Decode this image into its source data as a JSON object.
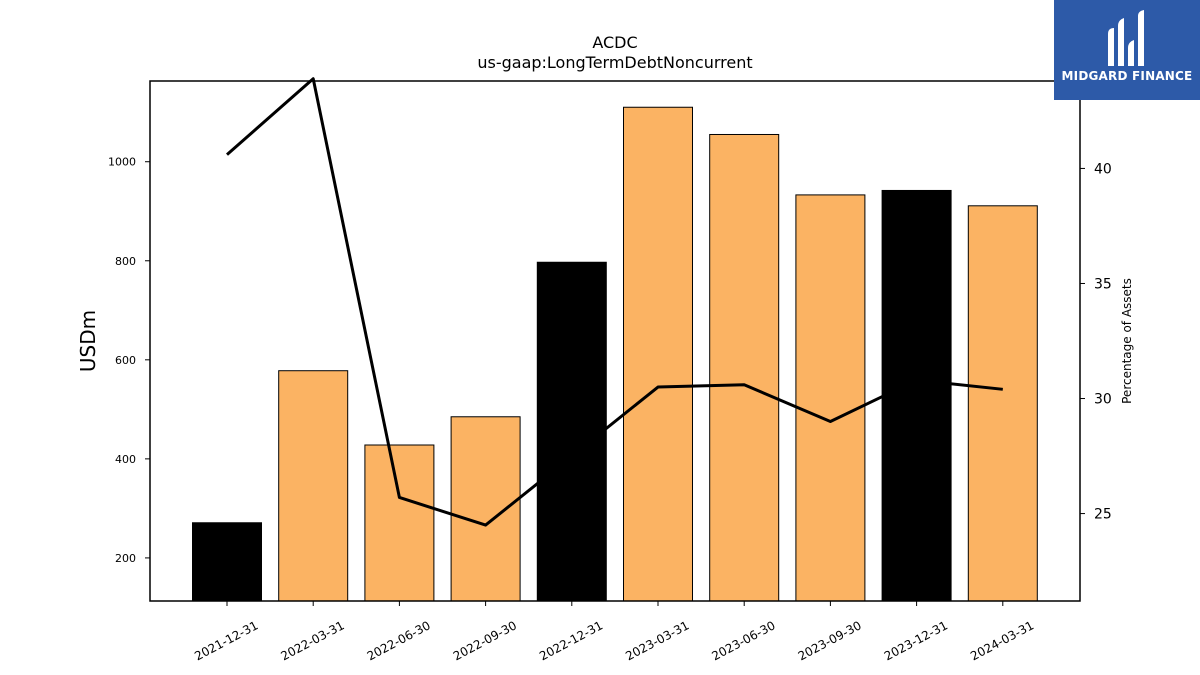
{
  "chart_data": {
    "type": "bar",
    "title": "ACDC",
    "subtitle": "us-gaap:LongTermDebtNoncurrent",
    "ylabel": "USDm",
    "y2label": "Percentage of Assets",
    "categories": [
      "2021-12-31",
      "2022-03-31",
      "2022-06-30",
      "2022-09-30",
      "2022-12-31",
      "2023-03-31",
      "2023-06-30",
      "2023-09-30",
      "2023-12-31",
      "2024-03-31"
    ],
    "values": [
      271,
      578,
      428,
      485,
      797,
      1110,
      1055,
      933,
      942,
      911
    ],
    "bar_colors": [
      "#000000",
      "#fbb363",
      "#fbb363",
      "#fbb363",
      "#000000",
      "#fbb363",
      "#fbb363",
      "#fbb363",
      "#000000",
      "#fbb363"
    ],
    "line": {
      "values": [
        40.6,
        43.9,
        25.7,
        24.5,
        27.5,
        30.5,
        30.6,
        29.0,
        30.8,
        30.4
      ],
      "color": "#000000"
    },
    "ylim": [
      113,
      1163
    ],
    "y2lim": [
      21.2,
      43.8
    ],
    "yticks": [
      200,
      400,
      600,
      800,
      1000
    ],
    "y2ticks": [
      25,
      30,
      35,
      40
    ]
  },
  "logo": {
    "text": "MIDGARD FINANCE",
    "color": "#2d5aa8"
  }
}
